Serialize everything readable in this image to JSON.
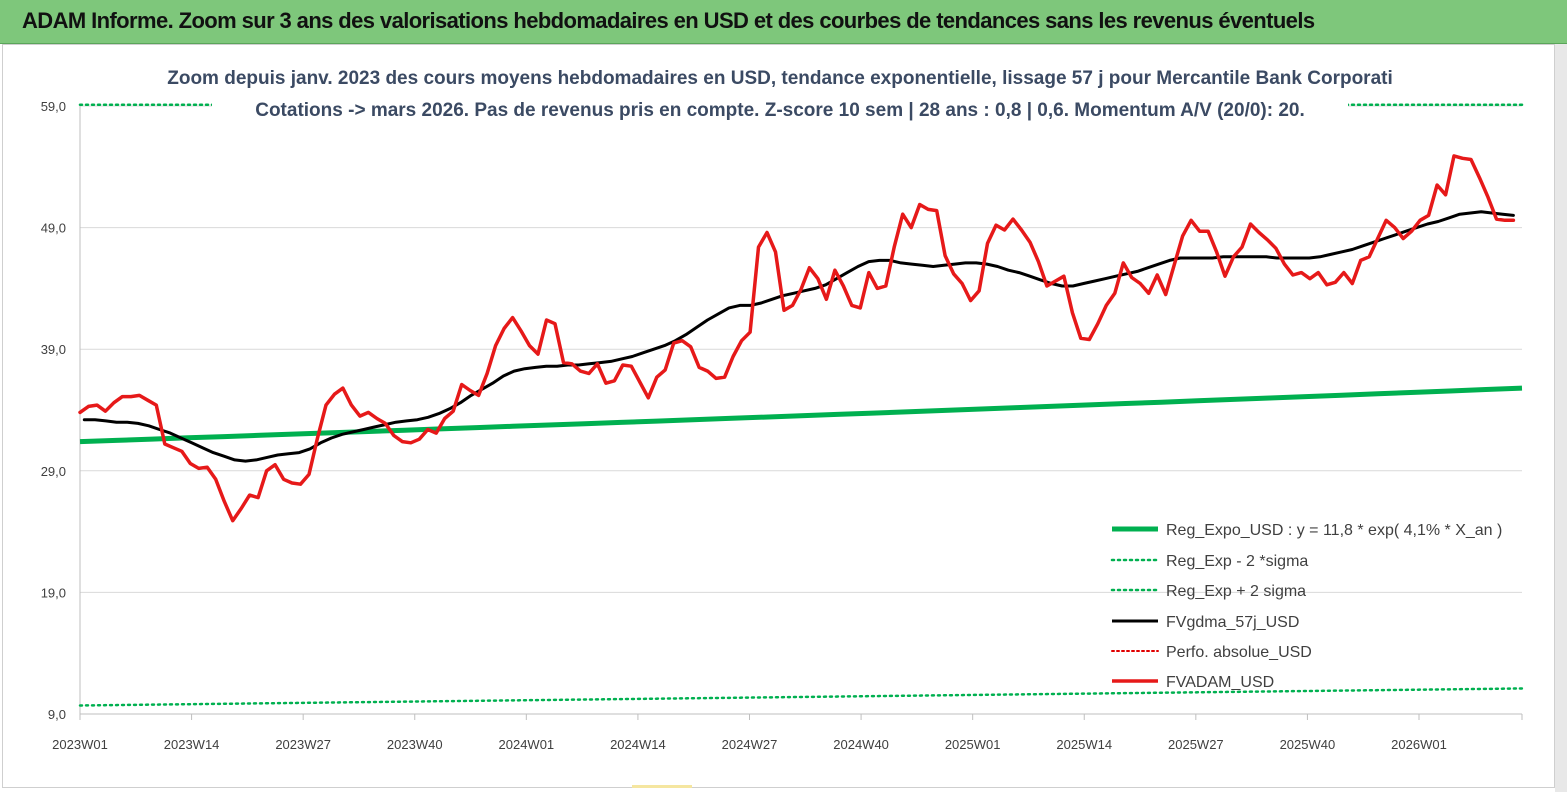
{
  "header": {
    "title": "ADAM Informe. Zoom sur 3 ans des valorisations hebdomadaires en USD et des courbes de tendances sans les revenus éventuels"
  },
  "chart_data": {
    "type": "line",
    "title_line1": "Zoom depuis janv. 2023 des cours moyens hebdomadaires en USD, tendance exponentielle, lissage 57 j pour Mercantile Bank Corporati",
    "title_line2": "Cotations -> mars 2026. Pas de revenus pris en compte. Z-score 10 sem | 28 ans : 0,8 | 0,6. Momentum A/V (20/0): 20.",
    "ylim": [
      9,
      59
    ],
    "y_ticks": [
      "59,0",
      "49,0",
      "39,0",
      "29,0",
      "19,0",
      "9,0"
    ],
    "x_ticks": [
      "2023W01",
      "2023W14",
      "2023W27",
      "2023W40",
      "2024W01",
      "2024W14",
      "2024W27",
      "2024W40",
      "2025W01",
      "2025W14",
      "2025W27",
      "2025W40",
      "2026W01"
    ],
    "n_weeks": 168,
    "grid": true,
    "legend_position": "bottom-right",
    "colors": {
      "regexpo": "#00b050",
      "fvgdma": "#000000",
      "perfo": "#e00000",
      "fvadam": "#e61919"
    },
    "series": [
      {
        "key": "regexpo",
        "name": "Reg_Expo_USD : y = 11,8 * exp( 4,1% *  X_an )",
        "style": "thick",
        "start": 31.4,
        "end": 35.8
      },
      {
        "key": "minus2",
        "name": "Reg_Exp - 2 *sigma",
        "style": "dotted",
        "start": 9.7,
        "end": 11.1
      },
      {
        "key": "plus2",
        "name": "Reg_Exp + 2 sigma",
        "style": "dotted",
        "start": 59.1,
        "end": 59.1
      },
      {
        "key": "fvgdma",
        "name": "FVgdma_57j_USD",
        "style": "solid",
        "values": [
          33.2,
          33.2,
          33.1,
          33.0,
          33.0,
          32.9,
          32.7,
          32.4,
          32.1,
          31.7,
          31.3,
          30.9,
          30.5,
          30.2,
          29.9,
          29.8,
          29.9,
          30.1,
          30.3,
          30.4,
          30.5,
          30.8,
          31.3,
          31.7,
          32.0,
          32.2,
          32.4,
          32.6,
          32.8,
          33.0,
          33.1,
          33.2,
          33.4,
          33.7,
          34.1,
          34.6,
          35.2,
          35.7,
          36.2,
          36.8,
          37.2,
          37.4,
          37.5,
          37.6,
          37.6,
          37.7,
          37.7,
          37.8,
          37.9,
          38.0,
          38.2,
          38.4,
          38.7,
          39.0,
          39.3,
          39.7,
          40.2,
          40.8,
          41.4,
          41.9,
          42.4,
          42.6,
          42.6,
          42.8,
          43.1,
          43.4,
          43.6,
          43.8,
          44.0,
          44.3,
          44.8,
          45.3,
          45.8,
          46.2,
          46.3,
          46.3,
          46.1,
          46.0,
          45.9,
          45.8,
          45.9,
          46.0,
          46.1,
          46.1,
          46.0,
          45.8,
          45.5,
          45.3,
          45.0,
          44.7,
          44.4,
          44.2,
          44.2,
          44.4,
          44.6,
          44.8,
          45.0,
          45.2,
          45.4,
          45.7,
          46.0,
          46.3,
          46.5,
          46.5,
          46.5,
          46.5,
          46.6,
          46.6,
          46.6,
          46.6,
          46.6,
          46.5,
          46.5,
          46.5,
          46.5,
          46.6,
          46.8,
          47.0,
          47.2,
          47.5,
          47.8,
          48.1,
          48.4,
          48.7,
          49.0,
          49.3,
          49.5,
          49.8,
          50.1,
          50.2,
          50.3,
          50.2,
          50.1,
          50.0
        ],
        "x_start": 0.5,
        "x_end": 167
      },
      {
        "key": "perfo",
        "name": "Perfo. absolue_USD",
        "style": "dotted-red"
      },
      {
        "key": "fvadam",
        "name": "FVADAM_USD",
        "style": "thick",
        "values": [
          33.8,
          34.3,
          34.4,
          33.9,
          34.6,
          35.1,
          35.1,
          35.2,
          34.8,
          34.4,
          31.2,
          30.9,
          30.6,
          29.6,
          29.2,
          29.3,
          28.3,
          26.5,
          24.9,
          25.9,
          27.0,
          26.8,
          29.0,
          29.5,
          28.3,
          28.0,
          27.9,
          28.7,
          31.7,
          34.4,
          35.3,
          35.8,
          34.4,
          33.5,
          33.8,
          33.3,
          32.9,
          31.9,
          31.4,
          31.3,
          31.6,
          32.4,
          32.1,
          33.3,
          33.9,
          36.1,
          35.6,
          35.2,
          37.0,
          39.3,
          40.7,
          41.6,
          40.5,
          39.3,
          38.6,
          41.4,
          41.1,
          37.9,
          37.8,
          37.2,
          37.0,
          37.8,
          36.2,
          36.4,
          37.7,
          37.6,
          36.3,
          35.0,
          36.7,
          37.3,
          39.5,
          39.7,
          39.2,
          37.5,
          37.2,
          36.6,
          36.7,
          38.4,
          39.7,
          40.4,
          47.4,
          48.6,
          47.0,
          42.2,
          42.6,
          43.9,
          45.7,
          44.8,
          43.1,
          45.5,
          44.2,
          42.6,
          42.4,
          45.3,
          44.0,
          44.2,
          47.4,
          50.1,
          49.0,
          50.9,
          50.5,
          50.4,
          46.7,
          45.2,
          44.4,
          43.0,
          43.8,
          47.7,
          49.2,
          48.8,
          49.7,
          48.8,
          47.8,
          46.2,
          44.2,
          44.6,
          45.0,
          42.0,
          39.9,
          39.8,
          41.1,
          42.6,
          43.6,
          46.1,
          44.9,
          44.4,
          43.6,
          45.1,
          43.5,
          45.9,
          48.3,
          49.6,
          48.7,
          48.7,
          47.0,
          45.0,
          46.6,
          47.4,
          49.3,
          48.6,
          48.0,
          47.3,
          46.0,
          45.1,
          45.3,
          44.8,
          45.3,
          44.3,
          44.5,
          45.3,
          44.4,
          46.3,
          46.6,
          48.1,
          49.6,
          49.0,
          48.1,
          48.7,
          49.6,
          50.0,
          52.5,
          51.7,
          54.9,
          54.7,
          54.6,
          53.1,
          51.5,
          49.7,
          49.6,
          49.6
        ],
        "x_start": 0,
        "x_end": 167
      }
    ]
  }
}
